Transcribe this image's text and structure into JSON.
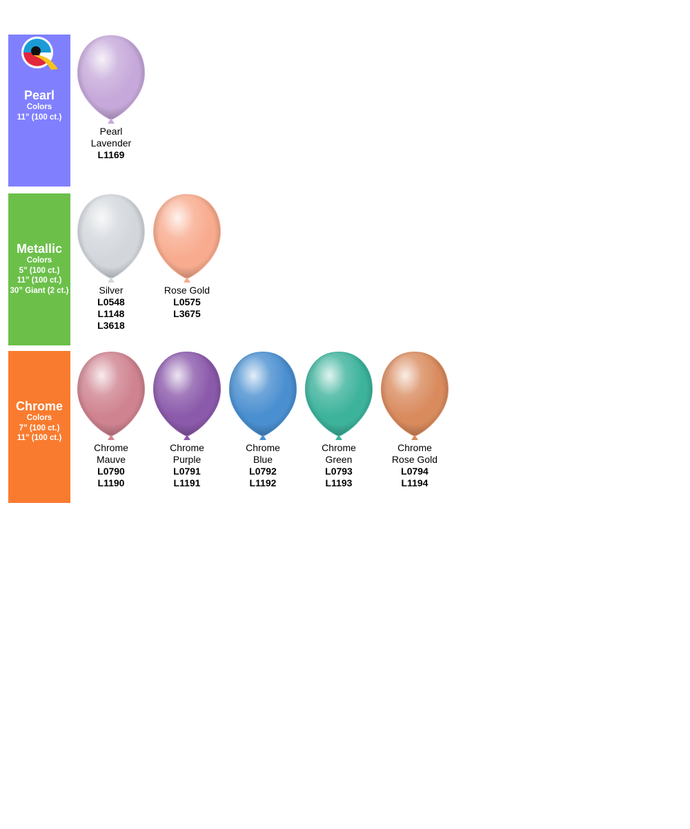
{
  "sections": [
    {
      "title": "Pearl",
      "subtitle": "Colors",
      "sizes": [
        "11” (100 ct.)"
      ],
      "color": "#8080ff",
      "logo": true,
      "items": [
        {
          "name": [
            "Pearl",
            "Lavender"
          ],
          "codes": [
            "L1169"
          ],
          "color": "#c6a9da"
        }
      ]
    },
    {
      "title": "Metallic",
      "subtitle": "Colors",
      "sizes": [
        "5” (100 ct.)",
        "11” (100 ct.)",
        "30” Giant (2 ct.)"
      ],
      "color": "#6cc04a",
      "logo": false,
      "items": [
        {
          "name": [
            "Silver"
          ],
          "codes": [
            "L0548",
            "L1148",
            "L3618"
          ],
          "color": "#d3d7dc"
        },
        {
          "name": [
            "Rose Gold"
          ],
          "codes": [
            "L0575",
            "L3675"
          ],
          "color": "#f8ab8e"
        }
      ]
    },
    {
      "title": "Chrome",
      "subtitle": "Colors",
      "sizes": [
        "7” (100 ct.)",
        "11” (100 ct.)"
      ],
      "color": "#f97b2f",
      "logo": false,
      "items": [
        {
          "name": [
            "Chrome",
            "Mauve"
          ],
          "codes": [
            "L0790",
            "L1190"
          ],
          "color": "#cf8390"
        },
        {
          "name": [
            "Chrome",
            "Purple"
          ],
          "codes": [
            "L0791",
            "L1191"
          ],
          "color": "#8b5aab"
        },
        {
          "name": [
            "Chrome",
            "Blue"
          ],
          "codes": [
            "L0792",
            "L1192"
          ],
          "color": "#4a8fd0"
        },
        {
          "name": [
            "Chrome",
            "Green"
          ],
          "codes": [
            "L0793",
            "L1193"
          ],
          "color": "#3db39c"
        },
        {
          "name": [
            "Chrome",
            "Rose Gold"
          ],
          "codes": [
            "L0794",
            "L1194"
          ],
          "color": "#d98b5e"
        }
      ]
    }
  ]
}
